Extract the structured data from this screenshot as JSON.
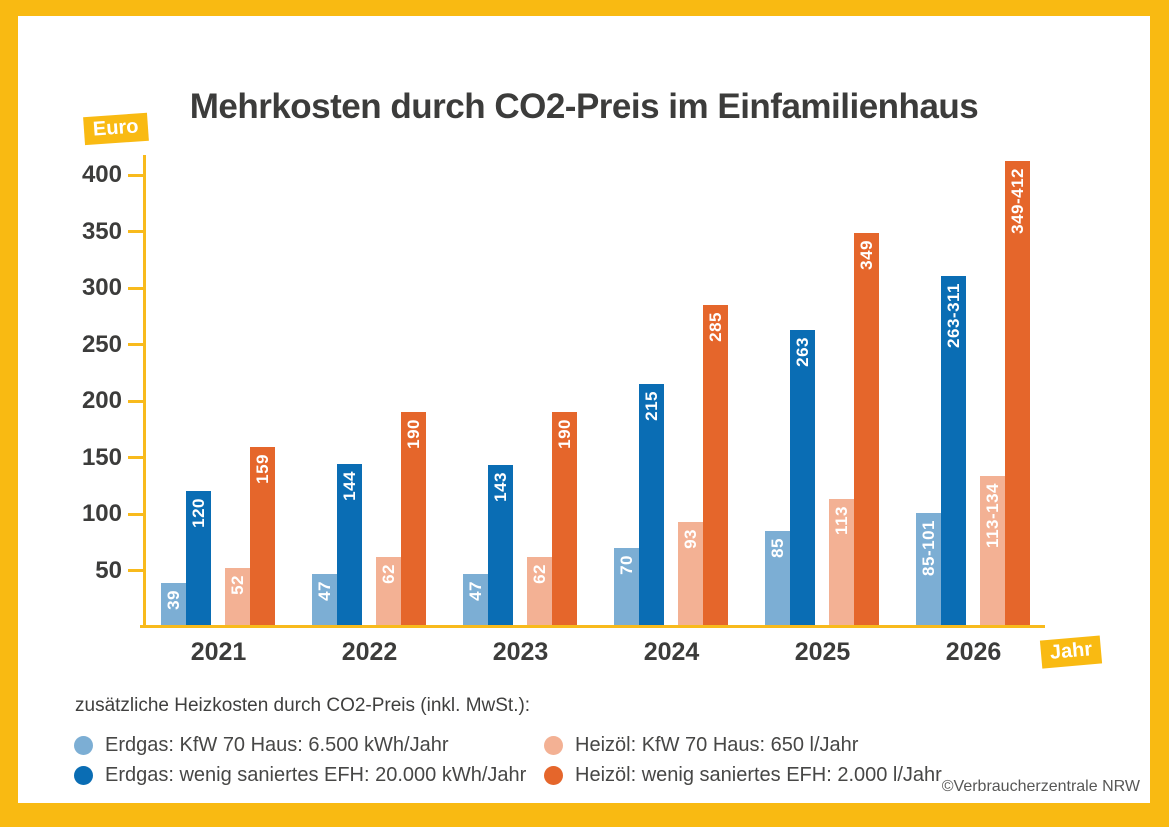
{
  "title": "Mehrkosten durch CO2-Preis im Einfamilienhaus",
  "axis_badges": {
    "y": "Euro",
    "x": "Jahr"
  },
  "legend": {
    "heading": "zusätzliche Heizkosten durch CO2-Preis (inkl. MwSt.):",
    "items": [
      {
        "label": "Erdgas: KfW 70 Haus: 6.500 kWh/Jahr",
        "color": "#7CAED4",
        "column": "left"
      },
      {
        "label": "Erdgas: wenig saniertes EFH: 20.000 kWh/Jahr",
        "color": "#0A6DB4",
        "column": "left"
      },
      {
        "label": "Heizöl: KfW 70 Haus: 650 l/Jahr",
        "color": "#F3B194",
        "column": "right"
      },
      {
        "label": "Heizöl: wenig saniertes EFH: 2.000 l/Jahr",
        "color": "#E5662B",
        "column": "right"
      }
    ]
  },
  "footer": {
    "copyright": "©Verbraucherzentrale NRW"
  },
  "colors": {
    "frame": "#F9BA12",
    "axis": "#F8BA1C",
    "title_text": "#3C3C3B",
    "tick_text": "#3C3C3B",
    "legend_text": "#474746",
    "copyright_text": "#575756",
    "badge_bg": "#F9BA12",
    "badge_text": "#FFFFFF",
    "bar_value_text": "#FFFFFF"
  },
  "chart_data": {
    "type": "bar",
    "title": "Mehrkosten durch CO2-Preis im Einfamilienhaus",
    "xlabel": "Jahr",
    "ylabel": "Euro",
    "categories": [
      "2021",
      "2022",
      "2023",
      "2024",
      "2025",
      "2026"
    ],
    "series": [
      {
        "name": "Erdgas: KfW 70 Haus: 6.500 kWh/Jahr",
        "color": "#7CAED4",
        "labels": [
          "39",
          "47",
          "47",
          "70",
          "85",
          "85-101"
        ],
        "values": [
          39,
          47,
          47,
          70,
          85,
          101
        ]
      },
      {
        "name": "Erdgas: wenig saniertes EFH: 20.000 kWh/Jahr",
        "color": "#0A6DB4",
        "labels": [
          "120",
          "144",
          "143",
          "215",
          "263",
          "263-311"
        ],
        "values": [
          120,
          144,
          143,
          215,
          263,
          311
        ]
      },
      {
        "name": "Heizöl: KfW 70 Haus: 650 l/Jahr",
        "color": "#F3B194",
        "labels": [
          "52",
          "62",
          "62",
          "93",
          "113",
          "113-134"
        ],
        "values": [
          52,
          62,
          62,
          93,
          113,
          134
        ]
      },
      {
        "name": "Heizöl: wenig saniertes EFH: 2.000 l/Jahr",
        "color": "#E5662B",
        "labels": [
          "159",
          "190",
          "190",
          "285",
          "349",
          "349-412"
        ],
        "values": [
          159,
          190,
          190,
          285,
          349,
          412
        ]
      }
    ],
    "ylim": [
      0,
      400
    ],
    "yticks": [
      50,
      100,
      150,
      200,
      250,
      300,
      350,
      400
    ],
    "grid": false,
    "legend_position": "bottom",
    "note": "2026 bars show value ranges; bar heights drawn to upper bound"
  }
}
